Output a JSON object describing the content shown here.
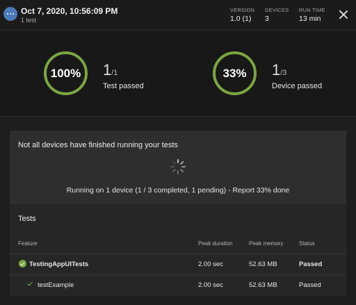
{
  "header": {
    "title": "Oct 7, 2020, 10:56:09 PM",
    "subtitle": "1 test",
    "version_label": "VERSION",
    "version_value": "1.0 (1)",
    "devices_label": "DEVICES",
    "devices_value": "3",
    "runtime_label": "RUN TIME",
    "runtime_value": "13 min"
  },
  "summary": {
    "tests": {
      "percent": "100%",
      "numerator": "1",
      "denominator": "/1",
      "label": "Test passed"
    },
    "devices": {
      "percent": "33%",
      "numerator": "1",
      "denominator": "/3",
      "label": "Device passed"
    }
  },
  "status": {
    "title": "Not all devices have finished running your tests",
    "running": "Running on 1 device (1 / 3 completed, 1 pending) - Report 33% done"
  },
  "tests": {
    "title": "Tests",
    "columns": {
      "feature": "Feature",
      "peak_duration": "Peak duration",
      "peak_memory": "Peak memory",
      "status": "Status"
    },
    "rows": [
      {
        "feature": "TestingAppUITests",
        "duration": "2.00 sec",
        "memory": "52.63 MB",
        "status": "Passed"
      },
      {
        "feature": "testExample",
        "duration": "2.00 sec",
        "memory": "52.63 MB",
        "status": "Passed"
      }
    ]
  },
  "colors": {
    "accent_green": "#7ba640",
    "avatar_blue": "#4a7ab8"
  },
  "icons": {
    "avatar": "more-dots-icon",
    "close": "close-icon",
    "spinner": "loading-spinner-icon",
    "suite_status": "check-circle-icon",
    "test_status": "check-icon"
  }
}
